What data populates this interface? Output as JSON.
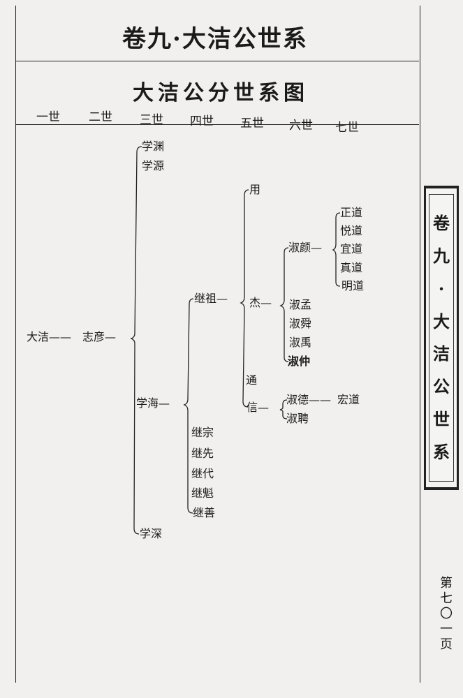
{
  "header": {
    "title": "卷九·大洁公世系",
    "subtitle": "大洁公分世系图"
  },
  "generations": [
    "一世",
    "二世",
    "三世",
    "四世",
    "五世",
    "六世",
    "七世"
  ],
  "tree": {
    "g1": "大洁——",
    "g2": "志彦—",
    "g3": [
      "学渊",
      "学源",
      "学海—",
      "学深"
    ],
    "g4": [
      "继祖—",
      "继宗",
      "继先",
      "继代",
      "继魁",
      "继善"
    ],
    "g5": [
      "用",
      "杰—",
      "通",
      "信—"
    ],
    "g6": [
      "淑颜—",
      "淑孟",
      "淑舜",
      "淑禹",
      "淑仲",
      "淑德——",
      "淑聘"
    ],
    "g7": [
      "正道",
      "悦道",
      "宜道",
      "真道",
      "明道",
      "宏道"
    ]
  },
  "side_label": [
    "卷",
    "九",
    "·",
    "大",
    "洁",
    "公",
    "世",
    "系"
  ],
  "page_number": "第七〇一页"
}
